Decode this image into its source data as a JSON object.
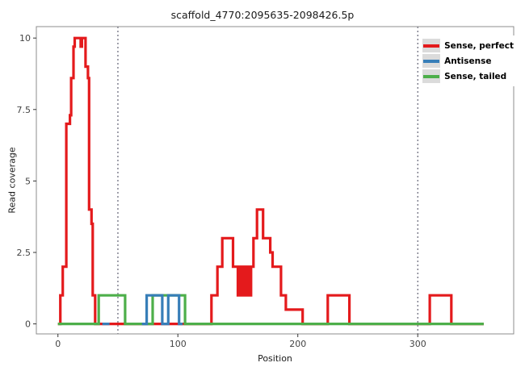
{
  "chart_data": {
    "type": "line",
    "step": true,
    "title": "scaffold_4770:2095635-2098426.5p",
    "xlabel": "Position",
    "ylabel": "Read coverage",
    "xlim": [
      -18,
      380
    ],
    "ylim": [
      -0.35,
      10.4
    ],
    "x_ticks": [
      0,
      100,
      200,
      300
    ],
    "x_tick_labels": [
      "0",
      "100",
      "200",
      "300"
    ],
    "y_ticks": [
      0,
      2.5,
      5,
      7.5,
      10
    ],
    "y_tick_labels": [
      "0",
      "2.5",
      "5",
      "7.5",
      "10"
    ],
    "grid": "off",
    "panel_border_color": "#8c8c8c",
    "tick_color": "#333333",
    "tick_label_color": "#444444",
    "vlines": [
      50,
      300
    ],
    "vline_color": "#44445a",
    "vline_dash": "2,3",
    "line_width": 3.2,
    "series": [
      {
        "name": "Sense, perfect",
        "color": "#e41a1c",
        "points": [
          [
            0,
            0
          ],
          [
            2,
            0
          ],
          [
            2,
            1
          ],
          [
            4,
            1
          ],
          [
            4,
            2
          ],
          [
            7,
            2
          ],
          [
            7,
            7
          ],
          [
            10,
            7
          ],
          [
            10,
            7.3
          ],
          [
            11,
            7.3
          ],
          [
            11,
            8.6
          ],
          [
            13,
            8.6
          ],
          [
            13,
            9.7
          ],
          [
            14,
            9.7
          ],
          [
            14,
            10
          ],
          [
            19,
            10
          ],
          [
            19,
            9.7
          ],
          [
            20,
            9.7
          ],
          [
            20,
            10
          ],
          [
            23,
            10
          ],
          [
            23,
            9
          ],
          [
            25,
            9
          ],
          [
            25,
            8.6
          ],
          [
            26,
            8.6
          ],
          [
            26,
            4
          ],
          [
            28,
            4
          ],
          [
            28,
            3.5
          ],
          [
            29,
            3.5
          ],
          [
            29,
            1
          ],
          [
            31,
            1
          ],
          [
            31,
            0
          ],
          [
            128,
            0
          ],
          [
            128,
            1
          ],
          [
            133,
            1
          ],
          [
            133,
            2
          ],
          [
            137,
            2
          ],
          [
            137,
            3
          ],
          [
            146,
            3
          ],
          [
            146,
            2
          ],
          [
            150,
            2
          ],
          [
            150,
            1
          ],
          [
            152,
            1
          ],
          [
            152,
            2
          ],
          [
            153,
            2
          ],
          [
            153,
            1
          ],
          [
            155,
            1
          ],
          [
            155,
            2
          ],
          [
            156,
            2
          ],
          [
            156,
            1
          ],
          [
            158,
            1
          ],
          [
            158,
            2
          ],
          [
            159,
            2
          ],
          [
            159,
            1
          ],
          [
            161,
            1
          ],
          [
            161,
            2
          ],
          [
            163,
            2
          ],
          [
            163,
            3
          ],
          [
            166,
            3
          ],
          [
            166,
            4
          ],
          [
            171,
            4
          ],
          [
            171,
            3
          ],
          [
            177,
            3
          ],
          [
            177,
            2.5
          ],
          [
            179,
            2.5
          ],
          [
            179,
            2
          ],
          [
            186,
            2
          ],
          [
            186,
            1
          ],
          [
            190,
            1
          ],
          [
            190,
            0.5
          ],
          [
            204,
            0.5
          ],
          [
            204,
            0
          ],
          [
            225,
            0
          ],
          [
            225,
            1
          ],
          [
            243,
            1
          ],
          [
            243,
            0
          ],
          [
            310,
            0
          ],
          [
            310,
            1
          ],
          [
            328,
            1
          ],
          [
            328,
            0
          ],
          [
            355,
            0
          ]
        ]
      },
      {
        "name": "Sense, tailed",
        "color": "#4daf4a",
        "points": [
          [
            0,
            0
          ],
          [
            34,
            0
          ],
          [
            34,
            1
          ],
          [
            56,
            1
          ],
          [
            56,
            0
          ],
          [
            79,
            0
          ],
          [
            79,
            1
          ],
          [
            106,
            1
          ],
          [
            106,
            0
          ],
          [
            355,
            0
          ]
        ]
      },
      {
        "name": "Antisense",
        "color": "#377eb8",
        "points": [
          [
            37,
            0
          ],
          [
            43,
            0
          ]
        ]
      },
      {
        "name": "Antisense",
        "color": "#377eb8",
        "points": [
          [
            70,
            0
          ],
          [
            74,
            0
          ],
          [
            74,
            1
          ],
          [
            87,
            1
          ],
          [
            87,
            0
          ],
          [
            92,
            0
          ],
          [
            92,
            1
          ],
          [
            101,
            1
          ],
          [
            101,
            0
          ],
          [
            104,
            0
          ]
        ]
      }
    ],
    "legend": {
      "position": "top-right",
      "key_background": "#dbdbdb",
      "entries": [
        {
          "label": "Sense, perfect",
          "color": "#e41a1c"
        },
        {
          "label": "Antisense",
          "color": "#377eb8"
        },
        {
          "label": "Sense, tailed",
          "color": "#4daf4a"
        }
      ]
    }
  }
}
